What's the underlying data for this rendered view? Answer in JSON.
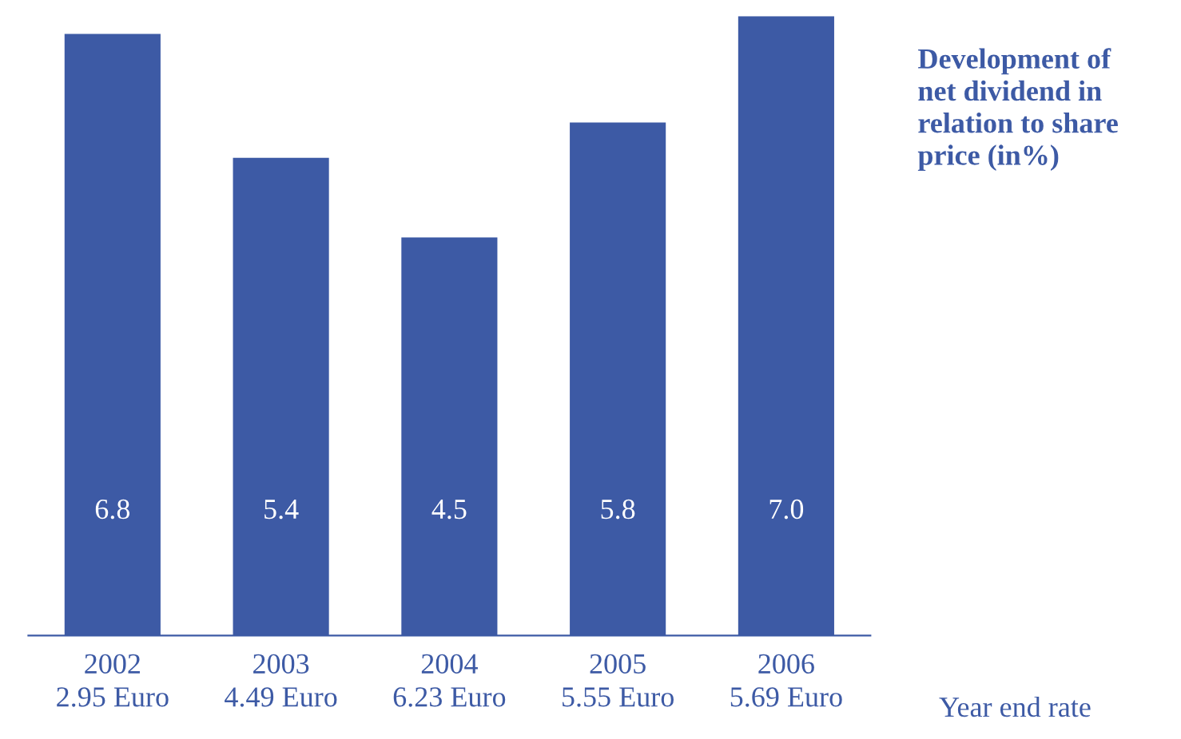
{
  "chart_data": {
    "type": "bar",
    "title": "Development of\nnet dividend in\nrelation to share\nprice (in%)",
    "categories": [
      "2002\n2.95 Euro",
      "2003\n4.49 Euro",
      "2004\n6.23 Euro",
      "2005\n5.55 Euro",
      "2006\n5.69 Euro"
    ],
    "values": [
      6.8,
      5.4,
      4.5,
      5.8,
      7.0
    ],
    "color": "#3d5aa5",
    "value_labels": [
      "6.8",
      "5.4",
      "4.5",
      "5.8",
      "7.0"
    ],
    "grid": false,
    "legend": false,
    "annotations": [
      "Year end rate"
    ]
  }
}
